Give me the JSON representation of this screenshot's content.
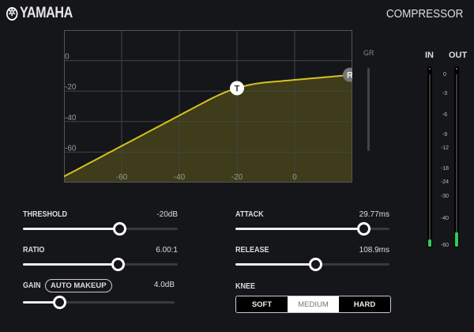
{
  "header": {
    "brand": "YAMAHA",
    "title": "COMPRESSOR"
  },
  "graph": {
    "x_ticks": [
      "-60",
      "-40",
      "-20",
      "0"
    ],
    "y_ticks": [
      "0",
      "-20",
      "-40",
      "-60"
    ],
    "range_db": [
      -80,
      20
    ],
    "threshold_marker": "T",
    "ratio_marker": "R",
    "curve_color": "#d6c21c",
    "fill_color": "#3e3c1a"
  },
  "gr": {
    "label": "GR"
  },
  "meters": {
    "in_label": "IN",
    "out_label": "OUT",
    "scale": [
      "0",
      "-3",
      "-6",
      "-9",
      "-12",
      "-18",
      "-24",
      "-30",
      "-40",
      "-60"
    ],
    "in_level_db": -55,
    "out_level_db": -50
  },
  "params": {
    "threshold": {
      "label": "THRESHOLD",
      "value": "-20dB",
      "db": -20,
      "fraction": 0.62
    },
    "ratio": {
      "label": "RATIO",
      "value": "6.00:1",
      "ratio": 6,
      "fraction": 0.61
    },
    "gain": {
      "label": "GAIN",
      "value": "4.0dB",
      "db": 4,
      "fraction": 0.24,
      "auto_makeup": "AUTO MAKEUP"
    },
    "attack": {
      "label": "ATTACK",
      "value": "29.77ms",
      "fraction": 0.83
    },
    "release": {
      "label": "RELEASE",
      "value": "108.9ms",
      "fraction": 0.52
    },
    "knee": {
      "label": "KNEE",
      "options": [
        "SOFT",
        "MEDIUM",
        "HARD"
      ],
      "selected": "MEDIUM"
    }
  }
}
